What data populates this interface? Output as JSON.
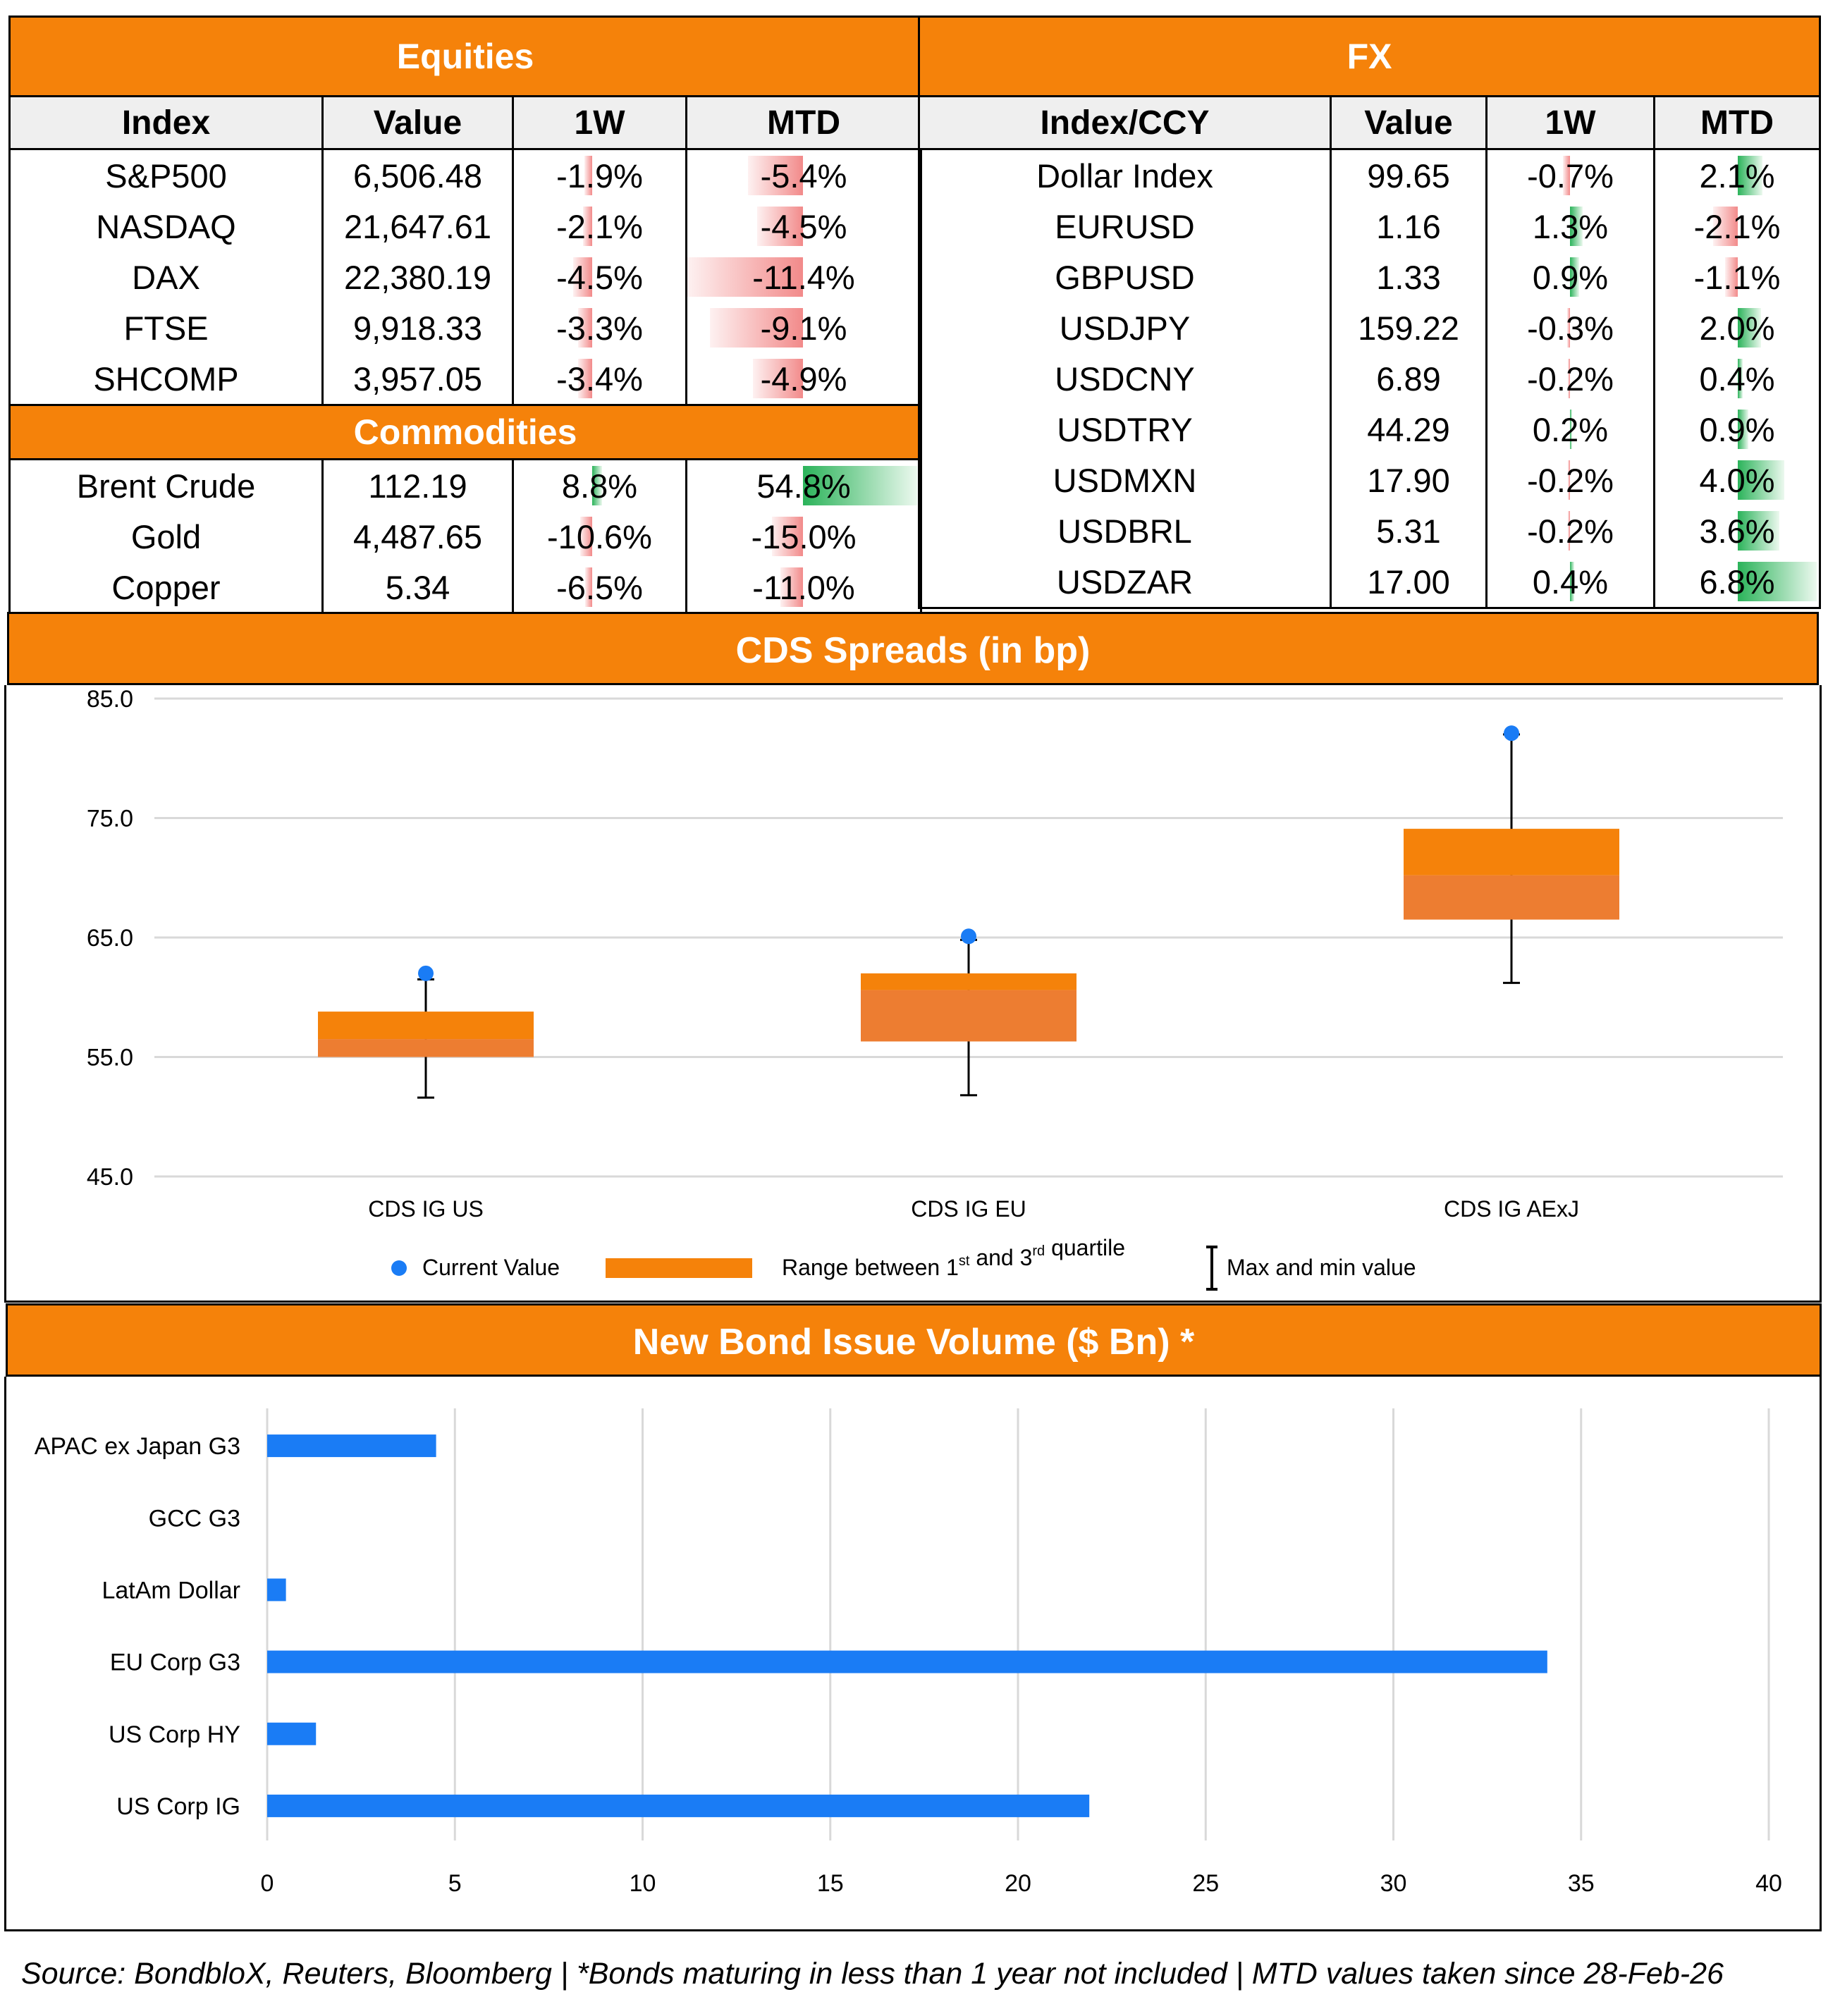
{
  "equities": {
    "title": "Equities",
    "headers": [
      "Index",
      "Value",
      "1W",
      "MTD"
    ],
    "rows": [
      {
        "name": "S&P500",
        "value": "6,506.48",
        "w1": "-1.9%",
        "mtd": "-5.4%",
        "w1_num": -1.9,
        "mtd_num": -5.4
      },
      {
        "name": "NASDAQ",
        "value": "21,647.61",
        "w1": "-2.1%",
        "mtd": "-4.5%",
        "w1_num": -2.1,
        "mtd_num": -4.5
      },
      {
        "name": "DAX",
        "value": "22,380.19",
        "w1": "-4.5%",
        "mtd": "-11.4%",
        "w1_num": -4.5,
        "mtd_num": -11.4
      },
      {
        "name": "FTSE",
        "value": "9,918.33",
        "w1": "-3.3%",
        "mtd": "-9.1%",
        "w1_num": -3.3,
        "mtd_num": -9.1
      },
      {
        "name": "SHCOMP",
        "value": "3,957.05",
        "w1": "-3.4%",
        "mtd": "-4.9%",
        "w1_num": -3.4,
        "mtd_num": -4.9
      }
    ]
  },
  "commodities": {
    "title": "Commodities",
    "rows": [
      {
        "name": "Brent Crude",
        "value": "112.19",
        "w1": "8.8%",
        "mtd": "54.8%",
        "w1_num": 8.8,
        "mtd_num": 54.8
      },
      {
        "name": "Gold",
        "value": "4,487.65",
        "w1": "-10.6%",
        "mtd": "-15.0%",
        "w1_num": -10.6,
        "mtd_num": -15.0
      },
      {
        "name": "Copper",
        "value": "5.34",
        "w1": "-6.5%",
        "mtd": "-11.0%",
        "w1_num": -6.5,
        "mtd_num": -11.0
      }
    ]
  },
  "fx": {
    "title": "FX",
    "headers": [
      "Index/CCY",
      "Value",
      "1W",
      "MTD"
    ],
    "rows": [
      {
        "name": "Dollar Index",
        "value": "99.65",
        "w1": "-0.7%",
        "mtd": "2.1%",
        "w1_num": -0.7,
        "mtd_num": 2.1
      },
      {
        "name": "EURUSD",
        "value": "1.16",
        "w1": "1.3%",
        "mtd": "-2.1%",
        "w1_num": 1.3,
        "mtd_num": -2.1
      },
      {
        "name": "GBPUSD",
        "value": "1.33",
        "w1": "0.9%",
        "mtd": "-1.1%",
        "w1_num": 0.9,
        "mtd_num": -1.1
      },
      {
        "name": "USDJPY",
        "value": "159.22",
        "w1": "-0.3%",
        "mtd": "2.0%",
        "w1_num": -0.3,
        "mtd_num": 2.0
      },
      {
        "name": "USDCNY",
        "value": "6.89",
        "w1": "-0.2%",
        "mtd": "0.4%",
        "w1_num": -0.2,
        "mtd_num": 0.4
      },
      {
        "name": "USDTRY",
        "value": "44.29",
        "w1": "0.2%",
        "mtd": "0.9%",
        "w1_num": 0.2,
        "mtd_num": 0.9
      },
      {
        "name": "USDMXN",
        "value": "17.90",
        "w1": "-0.2%",
        "mtd": "4.0%",
        "w1_num": -0.2,
        "mtd_num": 4.0
      },
      {
        "name": "USDBRL",
        "value": "5.31",
        "w1": "-0.2%",
        "mtd": "3.6%",
        "w1_num": -0.2,
        "mtd_num": 3.6
      },
      {
        "name": "USDZAR",
        "value": "17.00",
        "w1": "0.4%",
        "mtd": "6.8%",
        "w1_num": 0.4,
        "mtd_num": 6.8
      }
    ]
  },
  "colors": {
    "orange": "#f5820a",
    "box_top": "#f5820a",
    "box_bottom": "#ed7d31",
    "blue": "#1a7cf5",
    "pos": "#2bb35a",
    "neg": "#f28a8a"
  },
  "chart_data": [
    {
      "type": "box",
      "title": "CDS Spreads (in bp)",
      "categories": [
        "CDS IG US",
        "CDS IG EU",
        "CDS IG AExJ"
      ],
      "ylim": [
        45.0,
        85.0
      ],
      "yticks": [
        "45.0",
        "55.0",
        "65.0",
        "75.0",
        "85.0"
      ],
      "ytick_values": [
        45,
        55,
        65,
        75,
        85
      ],
      "min": [
        51.6,
        51.8,
        61.2
      ],
      "q1": [
        55.0,
        56.3,
        66.5
      ],
      "median": [
        56.5,
        60.6,
        70.2
      ],
      "q3": [
        58.8,
        62.0,
        74.1
      ],
      "max": [
        61.5,
        64.8,
        82.0
      ],
      "current": [
        62.0,
        65.1,
        82.1
      ],
      "legend": {
        "current": "Current Value",
        "range_prefix": "Range between 1",
        "range_sup1": "st",
        "range_mid": " and 3",
        "range_sup2": "rd",
        "range_suffix": " quartile",
        "minmax": "Max and min value"
      }
    },
    {
      "type": "bar",
      "orientation": "horizontal",
      "title": "New Bond Issue Volume ($ Bn) *",
      "categories": [
        "APAC ex Japan G3",
        "GCC G3",
        "LatAm Dollar",
        "EU Corp G3",
        "US Corp HY",
        "US Corp IG"
      ],
      "values": [
        4.5,
        0,
        0.5,
        34.1,
        1.3,
        21.9
      ],
      "xlim": [
        0,
        40
      ],
      "xticks": [
        "0",
        "5",
        "10",
        "15",
        "20",
        "25",
        "30",
        "35",
        "40"
      ],
      "xtick_values": [
        0,
        5,
        10,
        15,
        20,
        25,
        30,
        35,
        40
      ]
    }
  ],
  "footer": "Source: BondbloX, Reuters, Bloomberg | *Bonds maturing in less than 1 year not included | MTD values taken since 28-Feb-26"
}
